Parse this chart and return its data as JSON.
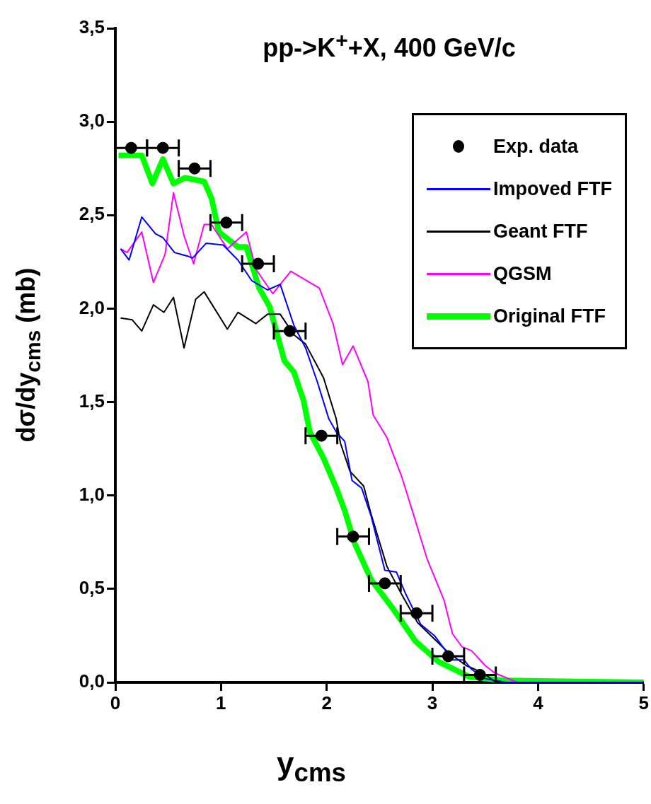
{
  "chart_data": {
    "type": "line",
    "title": "pp->K$^{+}$+X, 400 GeV/c",
    "xlabel": "y$_{cms}$",
    "ylabel": "dσ/dy$_{cms}$ (mb)",
    "xlim": [
      0,
      5
    ],
    "xticks": [
      0,
      1,
      2,
      3,
      4,
      5
    ],
    "ylim": [
      0,
      3.5
    ],
    "yticks": [
      {
        "value": 0,
        "label": "0,0"
      },
      {
        "value": 0.5,
        "label": "0,5"
      },
      {
        "value": 1,
        "label": "1,0"
      },
      {
        "value": 1.5,
        "label": "1,5"
      },
      {
        "value": 2,
        "label": "2,0"
      },
      {
        "value": 2.5,
        "label": "2,5"
      },
      {
        "value": 3,
        "label": "3,0"
      },
      {
        "value": 3.5,
        "label": "3,5"
      }
    ],
    "grid": false,
    "legend": "top right",
    "series": [
      {
        "name": "Exp. data",
        "type": "scatter",
        "marker": "circle",
        "color": "#000000",
        "x": [
          0.15,
          0.45,
          0.75,
          1.05,
          1.35,
          1.65,
          1.95,
          2.25,
          2.55,
          2.85,
          3.15,
          3.45
        ],
        "values": [
          2.86,
          2.86,
          2.75,
          2.46,
          2.24,
          1.88,
          1.32,
          0.78,
          0.53,
          0.37,
          0.14,
          0.04
        ],
        "xerrors": [
          0.15,
          0.15,
          0.15,
          0.15,
          0.15,
          0.15,
          0.15,
          0.15,
          0.15,
          0.15,
          0.15,
          0.15
        ]
      },
      {
        "name": "Impoved FTF",
        "type": "line",
        "marker": "none",
        "color": "#0000ff",
        "x": [
          0.05,
          0.13,
          0.25,
          0.38,
          0.45,
          0.56,
          0.69,
          0.73,
          0.86,
          1.02,
          1.16,
          1.29,
          1.44,
          1.56,
          1.69,
          1.8,
          1.91,
          2.02,
          2.09,
          2.17,
          2.24,
          2.33,
          2.42,
          2.55,
          2.66,
          2.75,
          2.89,
          3.02,
          3.19,
          3.3,
          3.37,
          3.5,
          3.7,
          5
        ],
        "values": [
          2.32,
          2.26,
          2.49,
          2.4,
          2.38,
          2.3,
          2.28,
          2.27,
          2.35,
          2.34,
          2.26,
          2.15,
          2.1,
          2.13,
          1.91,
          1.79,
          1.61,
          1.41,
          1.34,
          1.29,
          1.08,
          1.04,
          0.89,
          0.6,
          0.59,
          0.47,
          0.31,
          0.25,
          0.12,
          0.12,
          0.07,
          0.02,
          0,
          0
        ]
      },
      {
        "name": "Geant FTF",
        "type": "line",
        "marker": "none",
        "color": "#000000",
        "x": [
          0.05,
          0.16,
          0.25,
          0.36,
          0.46,
          0.55,
          0.65,
          0.76,
          0.84,
          1.06,
          1.16,
          1.33,
          1.44,
          1.56,
          1.69,
          1.8,
          1.97,
          2.09,
          2.13,
          2.22,
          2.35,
          2.42,
          2.57,
          2.71,
          2.86,
          3.15,
          3.32,
          3.48,
          3.6,
          5
        ],
        "values": [
          1.95,
          1.94,
          1.88,
          2.02,
          1.98,
          2.06,
          1.79,
          2.05,
          2.09,
          1.89,
          1.98,
          1.92,
          1.97,
          1.97,
          1.86,
          1.81,
          1.63,
          1.41,
          1.28,
          1.13,
          1.05,
          0.9,
          0.62,
          0.47,
          0.32,
          0.16,
          0.09,
          0.05,
          0,
          0
        ]
      },
      {
        "name": "QGSM",
        "type": "line",
        "marker": "none",
        "color": "#ff00ff",
        "x": [
          0.05,
          0.11,
          0.25,
          0.36,
          0.47,
          0.55,
          0.65,
          0.74,
          0.84,
          0.91,
          1.06,
          1.24,
          1.33,
          1.49,
          1.66,
          1.93,
          2.06,
          2.15,
          2.25,
          2.39,
          2.44,
          2.57,
          2.71,
          2.82,
          2.95,
          3.11,
          3.19,
          3.28,
          3.37,
          3.5,
          3.59,
          3.72,
          3.8,
          5
        ],
        "values": [
          2.32,
          2.3,
          2.41,
          2.14,
          2.29,
          2.62,
          2.39,
          2.24,
          2.45,
          2.45,
          2.32,
          2.41,
          2.21,
          2.08,
          2.2,
          2.11,
          1.92,
          1.7,
          1.8,
          1.61,
          1.43,
          1.31,
          1.1,
          0.9,
          0.66,
          0.44,
          0.26,
          0.19,
          0.17,
          0.09,
          0.05,
          0.02,
          0,
          0
        ]
      },
      {
        "name": "Original FTF",
        "type": "line",
        "marker": "none",
        "color": "#00ff00",
        "x": [
          0.03,
          0.25,
          0.35,
          0.45,
          0.55,
          0.66,
          0.84,
          0.91,
          0.98,
          1.16,
          1.24,
          1.36,
          1.46,
          1.6,
          1.69,
          1.78,
          1.84,
          1.97,
          2.09,
          2.17,
          2.26,
          2.42,
          2.62,
          2.84,
          3.06,
          3.35,
          3.68,
          5
        ],
        "values": [
          2.82,
          2.82,
          2.67,
          2.8,
          2.67,
          2.7,
          2.68,
          2.59,
          2.41,
          2.33,
          2.33,
          2.11,
          2.01,
          1.72,
          1.66,
          1.51,
          1.34,
          1.2,
          1.04,
          0.92,
          0.75,
          0.55,
          0.4,
          0.22,
          0.11,
          0.03,
          0.01,
          0
        ]
      }
    ]
  }
}
